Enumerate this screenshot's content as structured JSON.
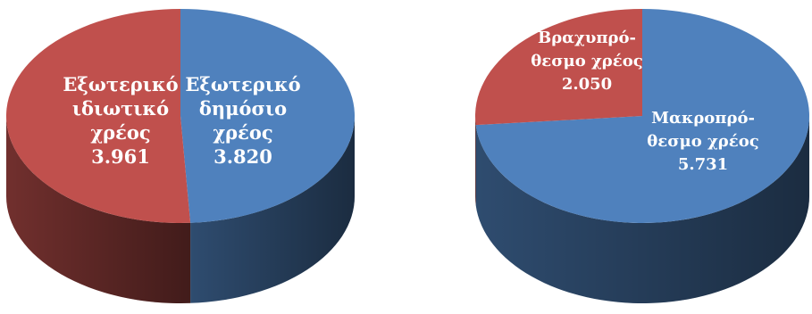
{
  "colors": {
    "blue_top": "#4f81bd",
    "blue_side": "#2c4a6e",
    "red_top": "#c0504d",
    "red_side": "#7a2e2d",
    "label_text": "#ffffff"
  },
  "chart_data": [
    {
      "type": "pie",
      "style": "3d",
      "slices": [
        {
          "lines": [
            "Εξωτερικό",
            "δημόσιο",
            "χρέος",
            "3.820"
          ],
          "value": 3820,
          "color": "#4f81bd"
        },
        {
          "lines": [
            "Εξωτερικό",
            "ιδιωτικό",
            "χρέος",
            "3.961"
          ],
          "value": 3961,
          "color": "#c0504d"
        }
      ]
    },
    {
      "type": "pie",
      "style": "3d",
      "slices": [
        {
          "lines": [
            "Μακροπρό-",
            "θεσμο χρέος",
            "5.731"
          ],
          "value": 5731,
          "color": "#4f81bd"
        },
        {
          "lines": [
            "Βραχυπρό-",
            "θεσμο χρέος",
            "2.050"
          ],
          "value": 2050,
          "color": "#c0504d"
        }
      ]
    }
  ]
}
